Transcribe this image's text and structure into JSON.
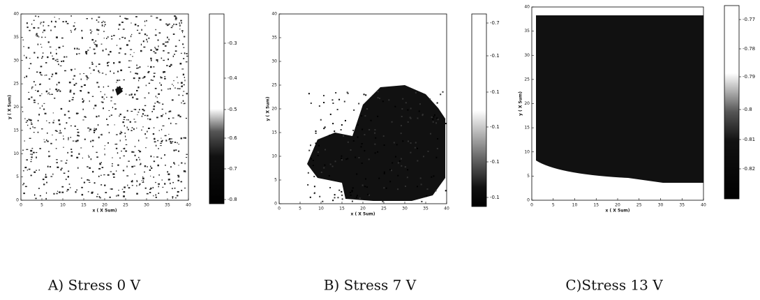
{
  "panels": [
    {
      "caption": "A) Stress 0 V",
      "x_label": "x ( X 5um)",
      "y_label": "y ( X 5um)",
      "xticks": [
        "0",
        "5",
        "10",
        "15",
        "20",
        "25",
        "30",
        "35",
        "40"
      ],
      "yticks": [
        "0",
        "5",
        "10",
        "15",
        "20",
        "25",
        "30",
        "35",
        "40"
      ],
      "colorbar_ticks": [
        "-0.3",
        "-0.4",
        "-0.5",
        "-0.6",
        "-0.7",
        "-0.8"
      ]
    },
    {
      "caption": "B) Stress 7 V",
      "x_label": "x ( X 5um)",
      "y_label": "y ( X 5um)",
      "xticks": [
        "0",
        "5",
        "10",
        "15",
        "20",
        "25",
        "30",
        "35",
        "40"
      ],
      "yticks": [
        "0",
        "5",
        "10",
        "15",
        "20",
        "25",
        "30",
        "35",
        "40"
      ],
      "colorbar_ticks": [
        "-0.7",
        "-0.1",
        "-0.1",
        "-0.1",
        "-0.1",
        "-0.1"
      ]
    },
    {
      "caption": "C)Stress 13 V",
      "x_label": "x ( X 5um)",
      "y_label": "y ( X 5um)",
      "xticks": [
        "0",
        "5",
        "10",
        "15",
        "20",
        "25",
        "30",
        "35",
        "40"
      ],
      "yticks": [
        "0",
        "5",
        "10",
        "15",
        "20",
        "25",
        "30",
        "35",
        "40"
      ],
      "colorbar_ticks": [
        "-0.77",
        "-0.78",
        "-0.79",
        "-0.8",
        "-0.81",
        "-0.82"
      ]
    }
  ]
}
